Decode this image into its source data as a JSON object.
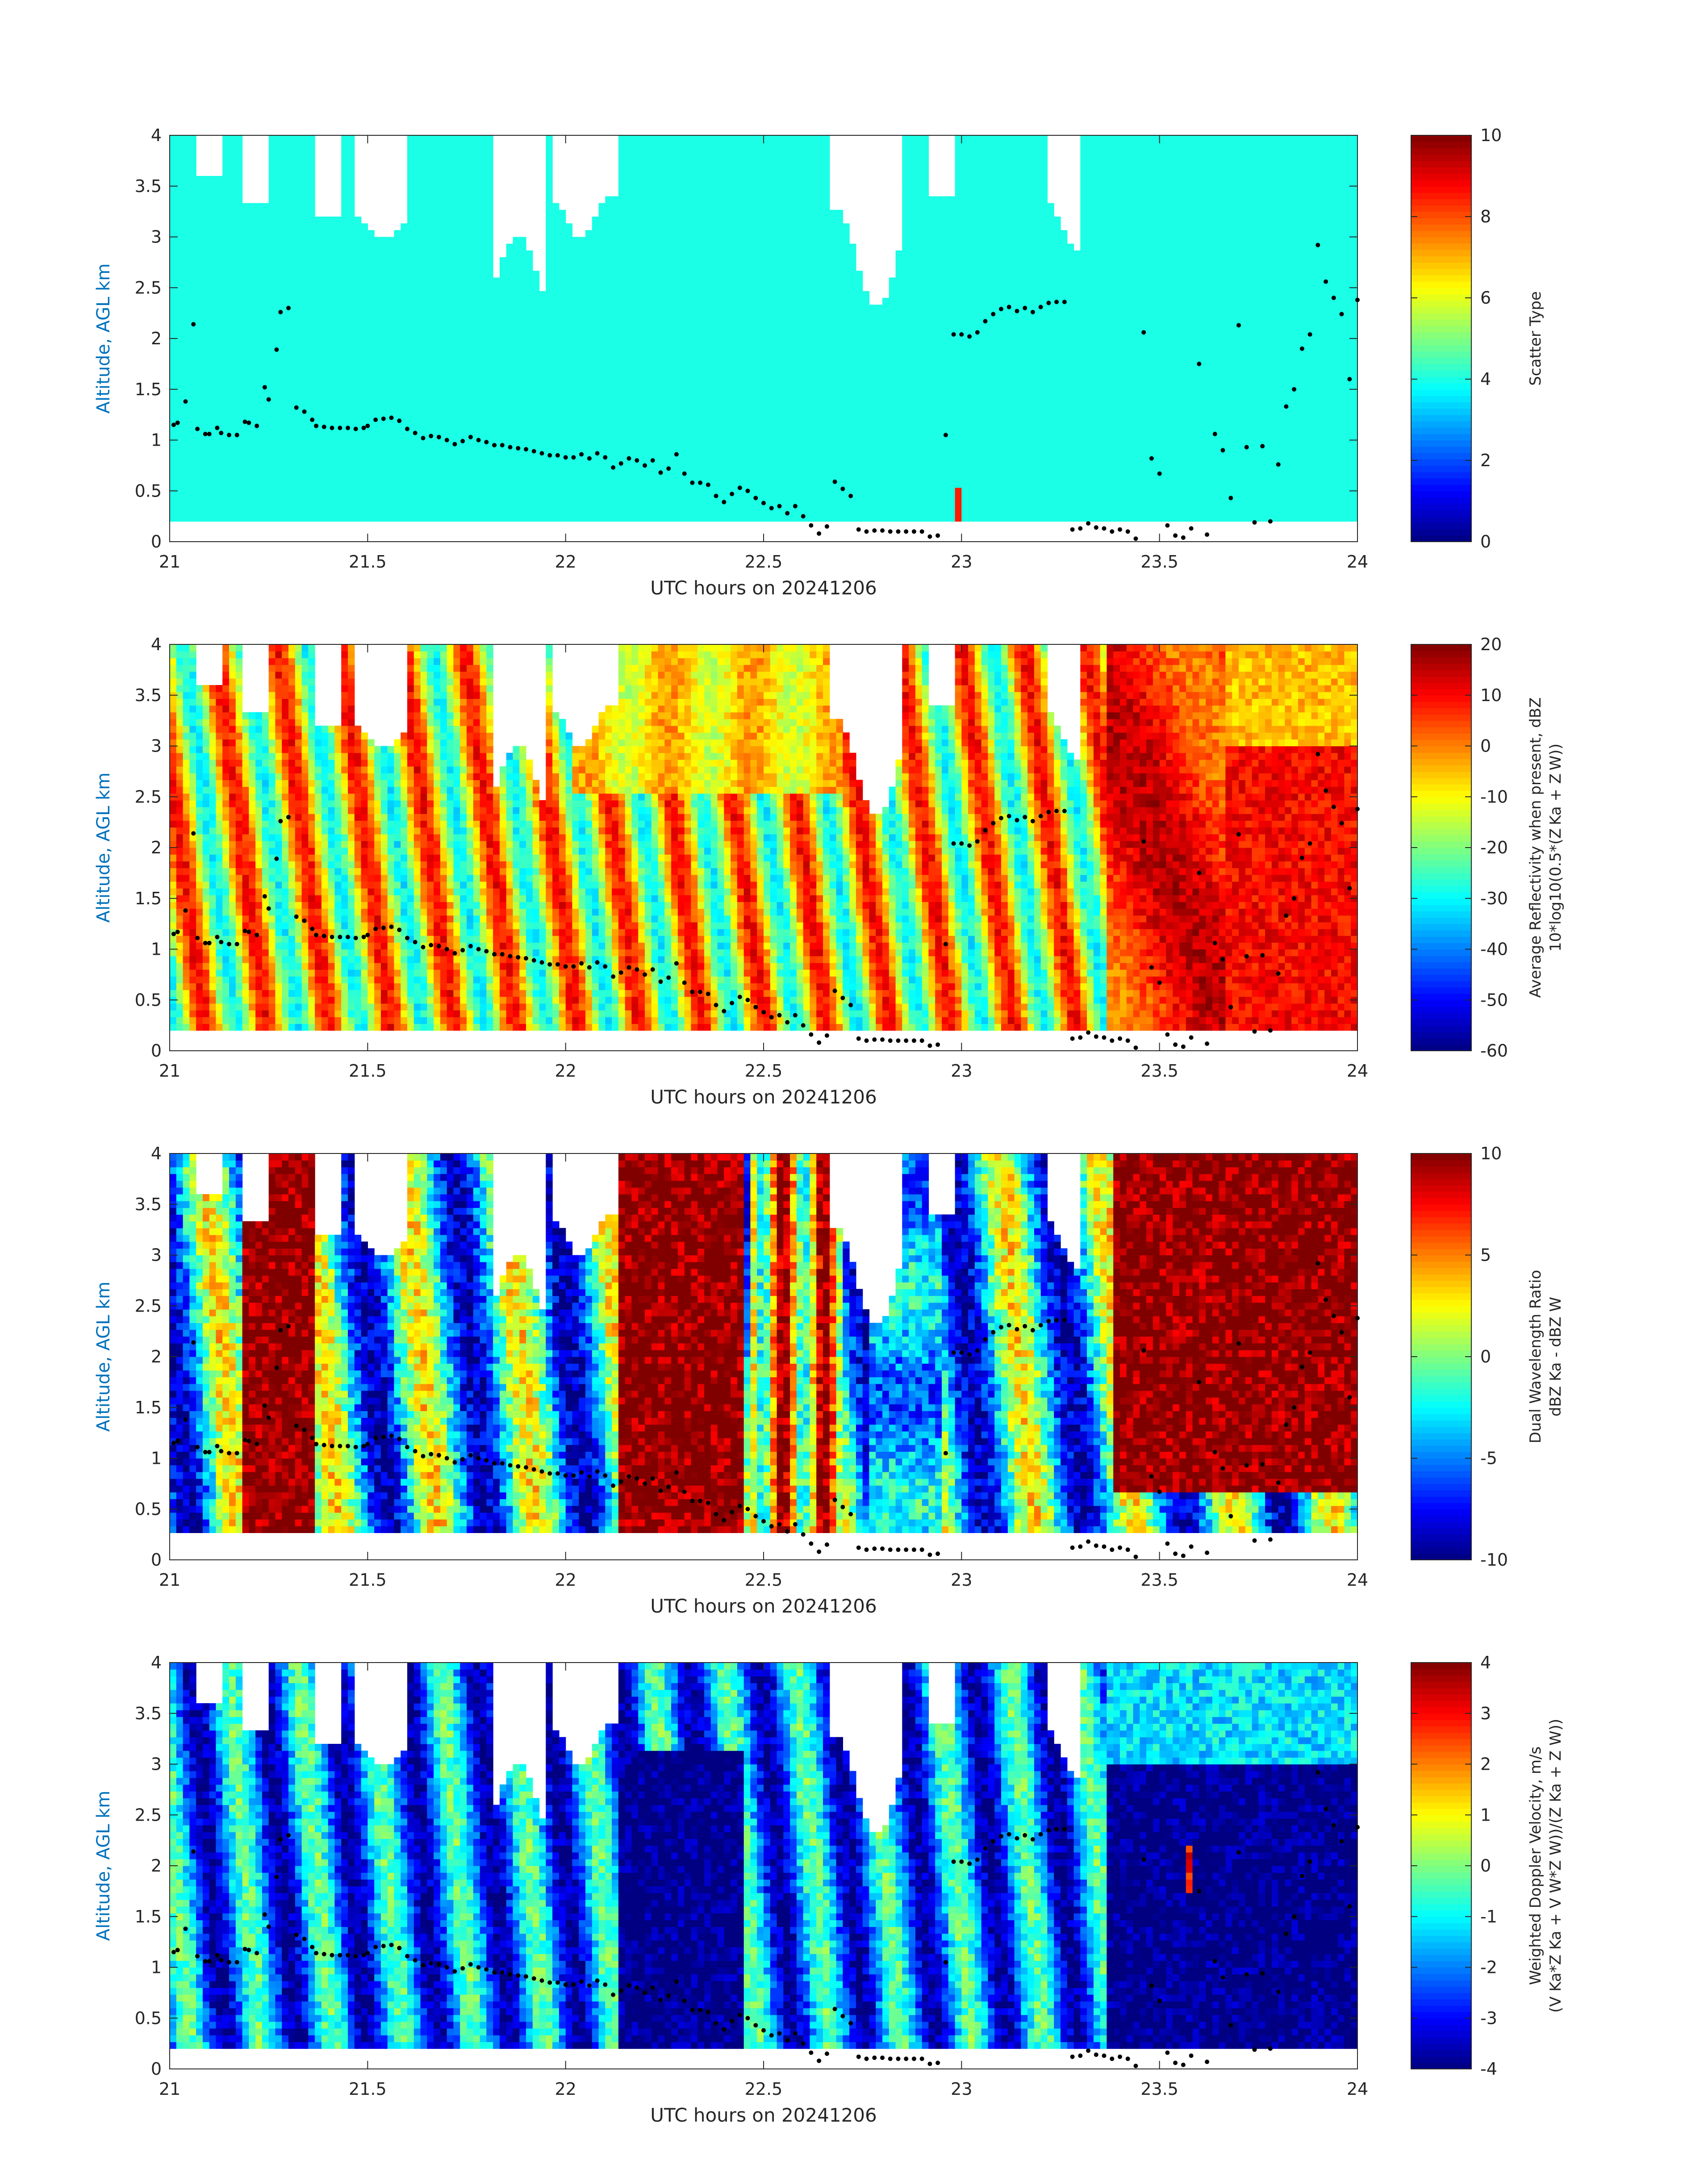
{
  "chart_data": [
    {
      "type": "heatmap",
      "xlabel": "UTC hours on 20241206",
      "ylabel": "Altitude, AGL km",
      "xlim": [
        21,
        24
      ],
      "ylim": [
        0,
        4
      ],
      "xticks": [
        "21",
        "21.5",
        "22",
        "22.5",
        "23",
        "23.5",
        "24"
      ],
      "yticks": [
        "0",
        "0.5",
        "1",
        "1.5",
        "2",
        "2.5",
        "3",
        "3.5",
        "4"
      ],
      "colorbar": {
        "label1": "Scatter Type",
        "label2": "",
        "clim": [
          0,
          10
        ],
        "ticks": [
          "0",
          "2",
          "4",
          "6",
          "8",
          "10"
        ]
      },
      "field": "scatter_type",
      "dominant_value": 4
    },
    {
      "type": "heatmap",
      "xlabel": "UTC hours on 20241206",
      "ylabel": "Altitude, AGL km",
      "xlim": [
        21,
        24
      ],
      "ylim": [
        0,
        4
      ],
      "xticks": [
        "21",
        "21.5",
        "22",
        "22.5",
        "23",
        "23.5",
        "24"
      ],
      "yticks": [
        "0",
        "0.5",
        "1",
        "1.5",
        "2",
        "2.5",
        "3",
        "3.5",
        "4"
      ],
      "colorbar": {
        "label1": "Average Reflectivity when present, dBZ",
        "label2": "10*log10(0.5*(Z Ka + Z W))",
        "clim": [
          -60,
          20
        ],
        "ticks": [
          "-60",
          "-50",
          "-40",
          "-30",
          "-20",
          "-10",
          "0",
          "10",
          "20"
        ]
      },
      "field": "reflectivity"
    },
    {
      "type": "heatmap",
      "xlabel": "UTC hours on 20241206",
      "ylabel": "Altitude, AGL km",
      "xlim": [
        21,
        24
      ],
      "ylim": [
        0,
        4
      ],
      "xticks": [
        "21",
        "21.5",
        "22",
        "22.5",
        "23",
        "23.5",
        "24"
      ],
      "yticks": [
        "0",
        "0.5",
        "1",
        "1.5",
        "2",
        "2.5",
        "3",
        "3.5",
        "4"
      ],
      "colorbar": {
        "label1": "Dual Wavelength Ratio",
        "label2": "dBZ Ka - dBZ W",
        "clim": [
          -10,
          10
        ],
        "ticks": [
          "-10",
          "-5",
          "0",
          "5",
          "10"
        ]
      },
      "field": "dwr"
    },
    {
      "type": "heatmap",
      "xlabel": "UTC hours on 20241206",
      "ylabel": "Altitude, AGL km",
      "xlim": [
        21,
        24
      ],
      "ylim": [
        0,
        4
      ],
      "xticks": [
        "21",
        "21.5",
        "22",
        "22.5",
        "23",
        "23.5",
        "24"
      ],
      "yticks": [
        "0",
        "0.5",
        "1",
        "1.5",
        "2",
        "2.5",
        "3",
        "3.5",
        "4"
      ],
      "colorbar": {
        "label1": "Weighted Doppler Velocity, m/s",
        "label2": "(V Ka*Z Ka + V W*Z W))/(Z Ka + Z W))",
        "clim": [
          -4,
          4
        ],
        "ticks": [
          "-4",
          "-3",
          "-2",
          "-1",
          "0",
          "1",
          "2",
          "3",
          "4"
        ]
      },
      "field": "doppler_velocity"
    }
  ],
  "cloud_base_points": [
    [
      21.01,
      1.15
    ],
    [
      21.02,
      1.17
    ],
    [
      21.04,
      1.38
    ],
    [
      21.06,
      2.14
    ],
    [
      21.07,
      1.11
    ],
    [
      21.09,
      1.06
    ],
    [
      21.1,
      1.06
    ],
    [
      21.12,
      1.12
    ],
    [
      21.13,
      1.07
    ],
    [
      21.15,
      1.05
    ],
    [
      21.17,
      1.05
    ],
    [
      21.19,
      1.18
    ],
    [
      21.2,
      1.17
    ],
    [
      21.22,
      1.14
    ],
    [
      21.24,
      1.52
    ],
    [
      21.25,
      1.4
    ],
    [
      21.27,
      1.89
    ],
    [
      21.28,
      2.26
    ],
    [
      21.3,
      2.3
    ],
    [
      21.32,
      1.32
    ],
    [
      21.34,
      1.28
    ],
    [
      21.36,
      1.2
    ],
    [
      21.37,
      1.14
    ],
    [
      21.39,
      1.13
    ],
    [
      21.41,
      1.12
    ],
    [
      21.43,
      1.12
    ],
    [
      21.45,
      1.12
    ],
    [
      21.47,
      1.11
    ],
    [
      21.49,
      1.12
    ],
    [
      21.5,
      1.14
    ],
    [
      21.52,
      1.2
    ],
    [
      21.54,
      1.21
    ],
    [
      21.56,
      1.22
    ],
    [
      21.58,
      1.19
    ],
    [
      21.6,
      1.11
    ],
    [
      21.62,
      1.07
    ],
    [
      21.64,
      1.02
    ],
    [
      21.66,
      1.04
    ],
    [
      21.68,
      1.03
    ],
    [
      21.7,
      1.0
    ],
    [
      21.72,
      0.96
    ],
    [
      21.74,
      0.99
    ],
    [
      21.76,
      1.03
    ],
    [
      21.78,
      1.0
    ],
    [
      21.8,
      0.98
    ],
    [
      21.82,
      0.95
    ],
    [
      21.84,
      0.95
    ],
    [
      21.86,
      0.93
    ],
    [
      21.88,
      0.92
    ],
    [
      21.9,
      0.91
    ],
    [
      21.92,
      0.89
    ],
    [
      21.94,
      0.87
    ],
    [
      21.96,
      0.85
    ],
    [
      21.98,
      0.85
    ],
    [
      22.0,
      0.83
    ],
    [
      22.02,
      0.83
    ],
    [
      22.04,
      0.86
    ],
    [
      22.06,
      0.82
    ],
    [
      22.08,
      0.87
    ],
    [
      22.1,
      0.83
    ],
    [
      22.12,
      0.73
    ],
    [
      22.14,
      0.77
    ],
    [
      22.16,
      0.82
    ],
    [
      22.18,
      0.8
    ],
    [
      22.2,
      0.75
    ],
    [
      22.22,
      0.8
    ],
    [
      22.24,
      0.68
    ],
    [
      22.26,
      0.72
    ],
    [
      22.28,
      0.86
    ],
    [
      22.3,
      0.67
    ],
    [
      22.32,
      0.58
    ],
    [
      22.34,
      0.58
    ],
    [
      22.36,
      0.56
    ],
    [
      22.38,
      0.45
    ],
    [
      22.4,
      0.39
    ],
    [
      22.42,
      0.47
    ],
    [
      22.44,
      0.53
    ],
    [
      22.46,
      0.5
    ],
    [
      22.48,
      0.43
    ],
    [
      22.5,
      0.38
    ],
    [
      22.52,
      0.33
    ],
    [
      22.54,
      0.35
    ],
    [
      22.56,
      0.28
    ],
    [
      22.58,
      0.35
    ],
    [
      22.6,
      0.25
    ],
    [
      22.62,
      0.16
    ],
    [
      22.64,
      0.08
    ],
    [
      22.66,
      0.15
    ],
    [
      22.68,
      0.59
    ],
    [
      22.7,
      0.52
    ],
    [
      22.72,
      0.45
    ],
    [
      22.74,
      0.12
    ],
    [
      22.76,
      0.1
    ],
    [
      22.78,
      0.11
    ],
    [
      22.8,
      0.11
    ],
    [
      22.82,
      0.1
    ],
    [
      22.84,
      0.1
    ],
    [
      22.86,
      0.1
    ],
    [
      22.88,
      0.1
    ],
    [
      22.9,
      0.1
    ],
    [
      22.92,
      0.05
    ],
    [
      22.94,
      0.06
    ],
    [
      22.96,
      1.05
    ],
    [
      22.98,
      2.04
    ],
    [
      23.0,
      2.04
    ],
    [
      23.02,
      2.02
    ],
    [
      23.04,
      2.06
    ],
    [
      23.06,
      2.17
    ],
    [
      23.08,
      2.24
    ],
    [
      23.1,
      2.29
    ],
    [
      23.12,
      2.31
    ],
    [
      23.14,
      2.27
    ],
    [
      23.16,
      2.3
    ],
    [
      23.18,
      2.26
    ],
    [
      23.2,
      2.31
    ],
    [
      23.22,
      2.35
    ],
    [
      23.24,
      2.36
    ],
    [
      23.26,
      2.36
    ],
    [
      23.28,
      0.12
    ],
    [
      23.3,
      0.13
    ],
    [
      23.32,
      0.18
    ],
    [
      23.34,
      0.14
    ],
    [
      23.36,
      0.13
    ],
    [
      23.38,
      0.1
    ],
    [
      23.4,
      0.12
    ],
    [
      23.42,
      0.1
    ],
    [
      23.44,
      0.03
    ],
    [
      23.46,
      2.06
    ],
    [
      23.48,
      0.82
    ],
    [
      23.5,
      0.67
    ],
    [
      23.52,
      0.16
    ],
    [
      23.54,
      0.06
    ],
    [
      23.56,
      0.04
    ],
    [
      23.58,
      0.13
    ],
    [
      23.6,
      1.75
    ],
    [
      23.62,
      0.07
    ],
    [
      23.64,
      1.06
    ],
    [
      23.66,
      0.9
    ],
    [
      23.68,
      0.43
    ],
    [
      23.7,
      2.13
    ],
    [
      23.72,
      0.93
    ],
    [
      23.74,
      0.19
    ],
    [
      23.76,
      0.94
    ],
    [
      23.78,
      0.2
    ],
    [
      23.8,
      0.76
    ],
    [
      23.82,
      1.33
    ],
    [
      23.84,
      1.5
    ],
    [
      23.86,
      1.9
    ],
    [
      23.88,
      2.04
    ],
    [
      23.9,
      2.92
    ],
    [
      23.92,
      2.56
    ],
    [
      23.94,
      2.4
    ],
    [
      23.96,
      2.24
    ],
    [
      23.98,
      1.6
    ],
    [
      24.0,
      2.38
    ]
  ]
}
